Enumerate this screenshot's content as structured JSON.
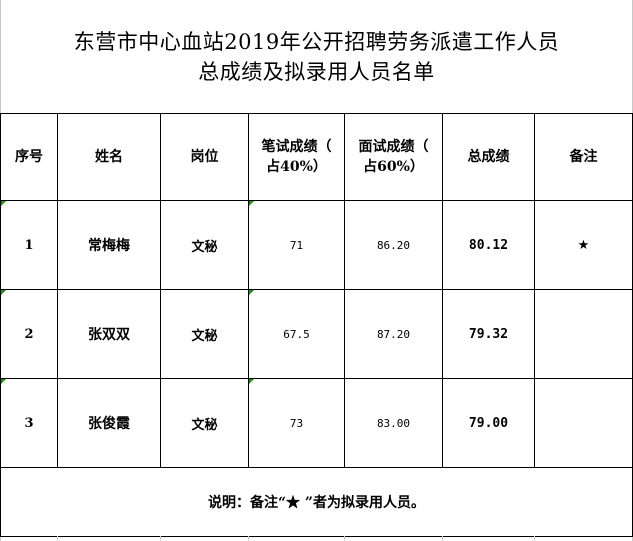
{
  "title": {
    "line1": "东营市中心血站2019年公开招聘劳务派遣工作人员",
    "line2": "总成绩及拟录用人员名单"
  },
  "table": {
    "headers": [
      "序号",
      "姓名",
      "岗位",
      "笔试成绩（占40%）",
      "面试成绩（占60%）",
      "总成绩",
      "备注"
    ],
    "header_lines": {
      "written": [
        "笔试成绩",
        "（占40%）"
      ],
      "interview": [
        "面试成绩",
        "（占60%）"
      ]
    },
    "rows": [
      {
        "no": "1",
        "name": "常梅梅",
        "position": "文秘",
        "written": "71",
        "interview": "86.20",
        "total": "80.12",
        "remark": "★"
      },
      {
        "no": "2",
        "name": "张双双",
        "position": "文秘",
        "written": "67.5",
        "interview": "87.20",
        "total": "79.32",
        "remark": ""
      },
      {
        "no": "3",
        "name": "张俊霞",
        "position": "文秘",
        "written": "73",
        "interview": "83.00",
        "total": "79.00",
        "remark": ""
      }
    ],
    "note": "说明：备注“★ ”者为拟录用人员。"
  },
  "colors": {
    "cell_marker": "#1a8a1a",
    "border": "#000000"
  }
}
